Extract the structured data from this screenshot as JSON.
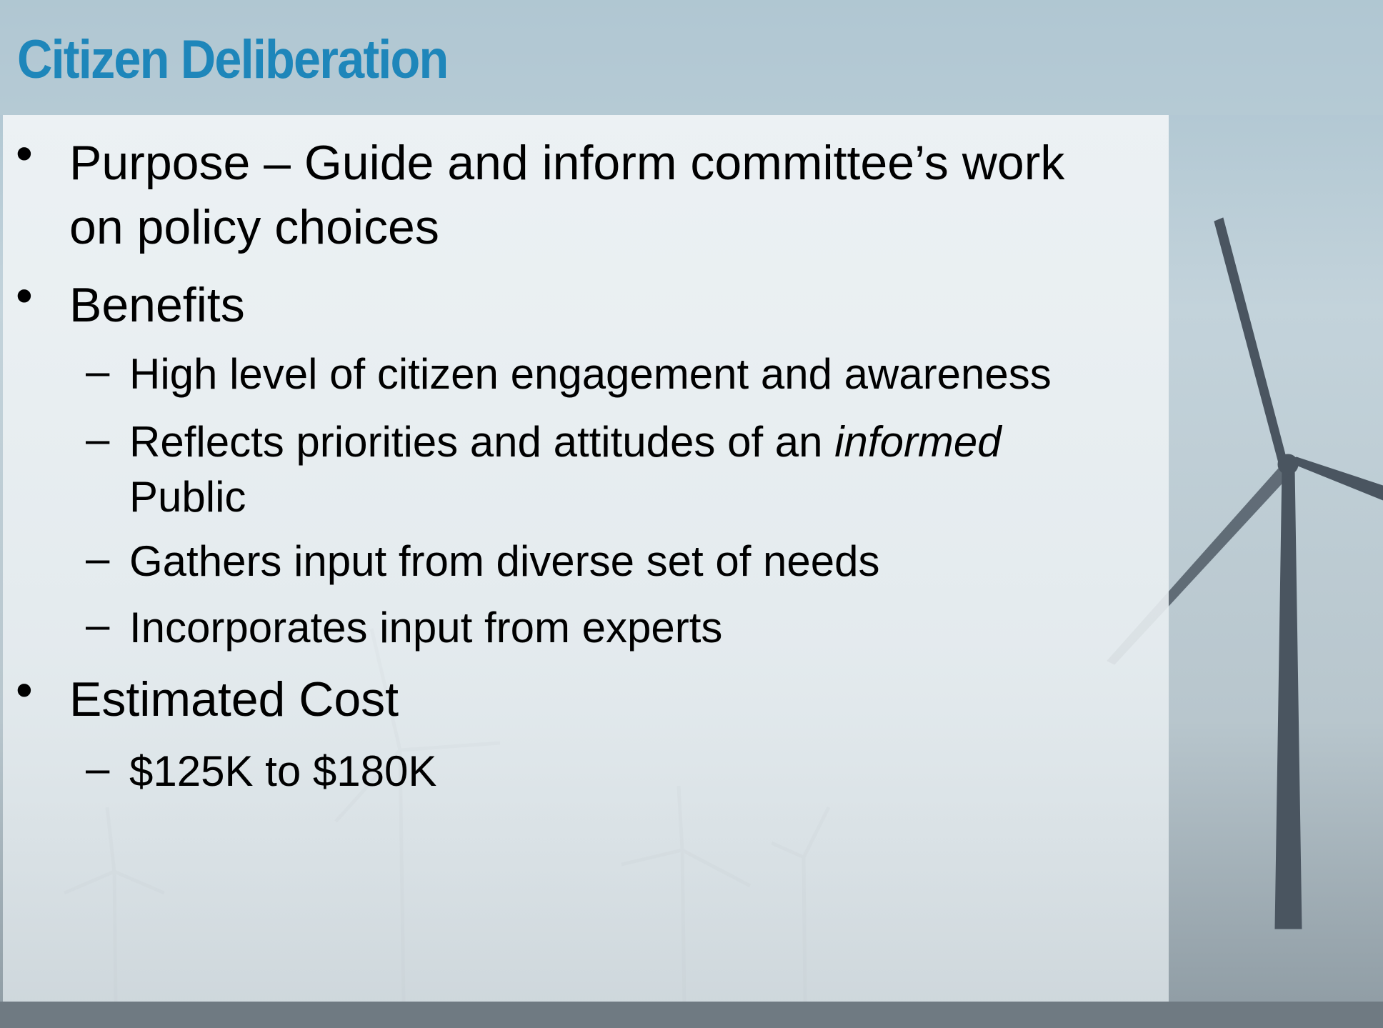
{
  "title": "Citizen Deliberation",
  "bullets": [
    {
      "text": "Purpose – Guide and inform committee’s work on policy choices"
    },
    {
      "text": "Benefits",
      "items": [
        {
          "text": "High level of citizen engagement and awareness"
        },
        {
          "text": "Reflects priorities and attitudes of an",
          "emphasis": "informed",
          "tail": "Public"
        },
        {
          "text": "Gathers input from diverse set of needs"
        },
        {
          "text": "Incorporates input from experts"
        }
      ]
    },
    {
      "text": "Estimated Cost",
      "items": [
        {
          "text": "$125K to $180K"
        }
      ]
    }
  ]
}
